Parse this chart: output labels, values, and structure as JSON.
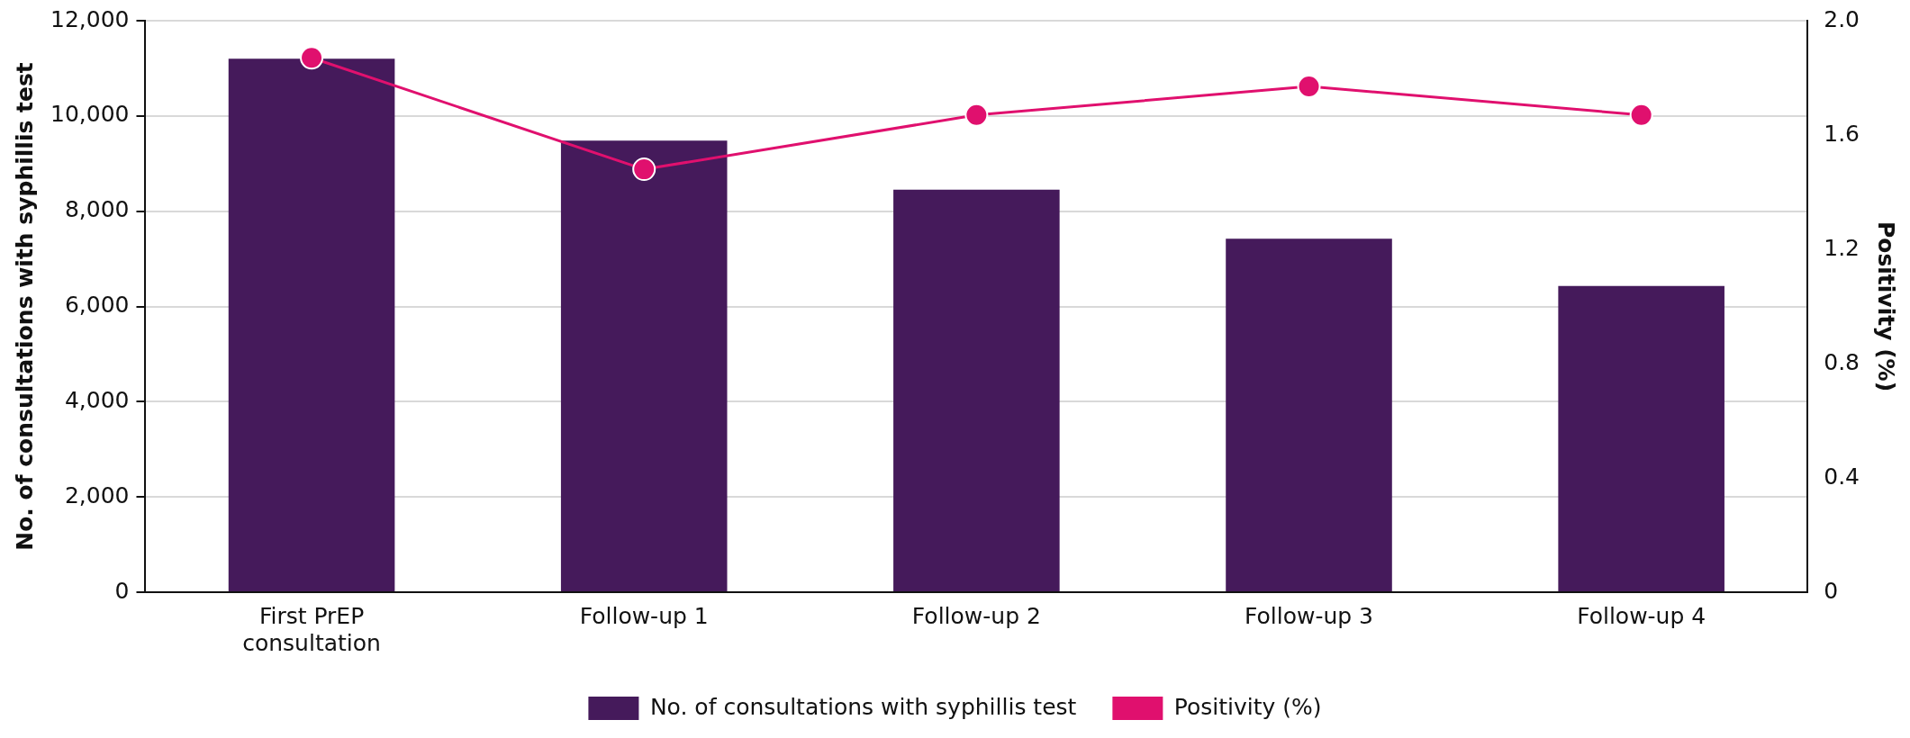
{
  "chart_data": {
    "type": "bar",
    "ylabel": "No. of consultations with syphillis test",
    "y2label": "Positivity (%)",
    "categories": [
      "First PrEP consultation",
      "Follow-up 1",
      "Follow-up 2",
      "Follow-up 3",
      "Follow-up 4"
    ],
    "series": [
      {
        "name": "No. of consultations with syphillis test",
        "color": "#451a5b",
        "values": [
          11200,
          9480,
          8450,
          7420,
          6430
        ]
      },
      {
        "name": "Positivity (%)",
        "type": "line",
        "axis": "y2",
        "color": "#e0106e",
        "values": [
          1.87,
          1.48,
          1.67,
          1.77,
          1.67
        ]
      }
    ],
    "ylim": [
      0,
      12000
    ],
    "yticks": [
      {
        "value": 0,
        "label": "0"
      },
      {
        "value": 2000,
        "label": "2,000"
      },
      {
        "value": 4000,
        "label": "4,000"
      },
      {
        "value": 6000,
        "label": "6,000"
      },
      {
        "value": 8000,
        "label": "8,000"
      },
      {
        "value": 10000,
        "label": "10,000"
      },
      {
        "value": 12000,
        "label": "12,000"
      }
    ],
    "y2lim": [
      0,
      2
    ],
    "y2ticks": [
      {
        "value": 0,
        "label": "0"
      },
      {
        "value": 0.4,
        "label": "0.4"
      },
      {
        "value": 0.8,
        "label": "0.8"
      },
      {
        "value": 1.2,
        "label": "1.2"
      },
      {
        "value": 1.6,
        "label": "1.6"
      },
      {
        "value": 2,
        "label": "2.0"
      }
    ],
    "grid": "y",
    "legend": "bottom",
    "marker": "circle",
    "line_style": "solid"
  }
}
